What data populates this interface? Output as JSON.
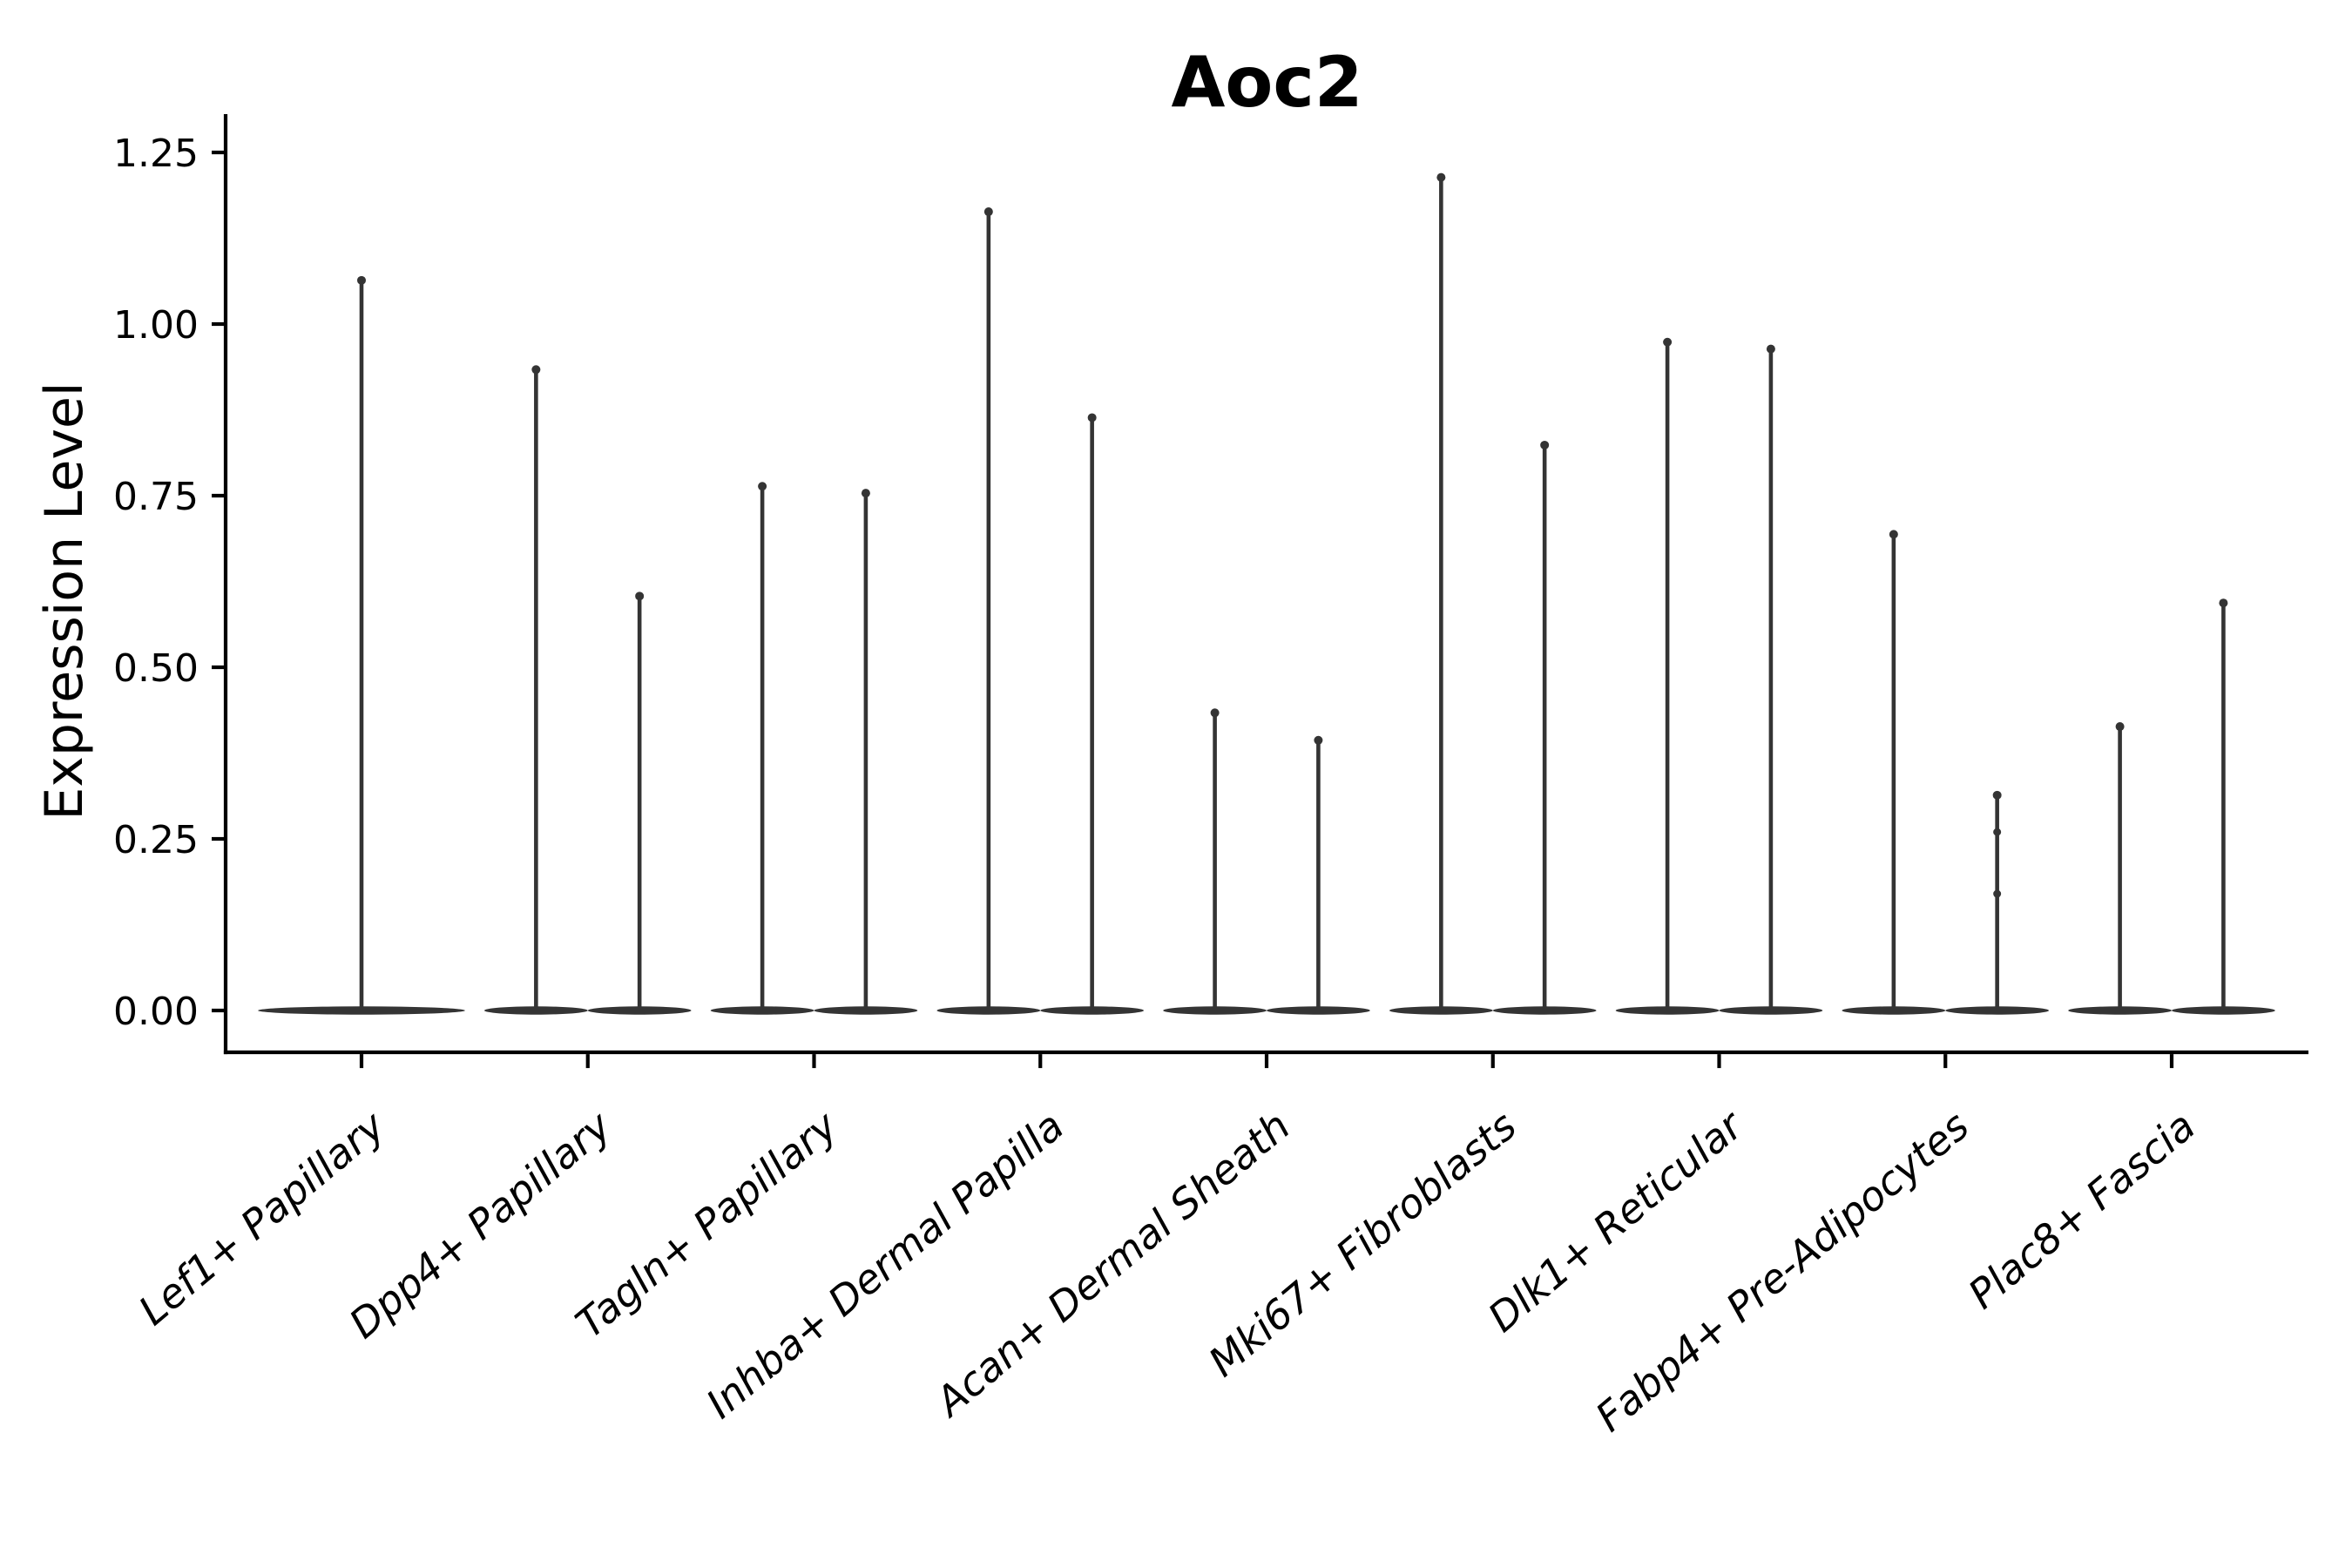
{
  "chart_data": {
    "type": "violin",
    "title": "Aoc2",
    "ylabel": "Expression Level",
    "xlabel": "",
    "grid": false,
    "legend_position": "none",
    "ylim": [
      -0.06,
      1.3
    ],
    "yticks": [
      0.0,
      0.25,
      0.5,
      0.75,
      1.0,
      1.25
    ],
    "ytick_labels": [
      "0.00",
      "0.25",
      "0.50",
      "0.75",
      "1.00",
      "1.25"
    ],
    "x_tick_label_rotation_deg": 40,
    "x_tick_label_style": "italic",
    "violin_color": "#343434",
    "axis_color": "#000000",
    "categories": [
      "Lef1+ Papillary",
      "Dpp4+ Papillary",
      "Tagln+ Papillary",
      "Inhba+ Dermal Papilla",
      "Acan+ Dermal Sheath",
      "Mki67+ Fibroblasts",
      "Dlk1+ Reticular",
      "Fabp4+ Pre-Adipocytes",
      "Plac8+ Fascia"
    ],
    "groups": [
      {
        "category": "Lef1+ Papillary",
        "violins": [
          {
            "max": 1.07,
            "points": []
          }
        ]
      },
      {
        "category": "Dpp4+ Papillary",
        "violins": [
          {
            "max": 0.94,
            "points": []
          },
          {
            "max": 0.61,
            "points": []
          }
        ]
      },
      {
        "category": "Tagln+ Papillary",
        "violins": [
          {
            "max": 0.77,
            "points": []
          },
          {
            "max": 0.76,
            "points": []
          }
        ]
      },
      {
        "category": "Inhba+ Dermal Papilla",
        "violins": [
          {
            "max": 1.17,
            "points": []
          },
          {
            "max": 0.87,
            "points": []
          }
        ]
      },
      {
        "category": "Acan+ Dermal Sheath",
        "violins": [
          {
            "max": 0.44,
            "points": []
          },
          {
            "max": 0.4,
            "points": []
          }
        ]
      },
      {
        "category": "Mki67+ Fibroblasts",
        "violins": [
          {
            "max": 1.22,
            "points": []
          },
          {
            "max": 0.83,
            "points": []
          }
        ]
      },
      {
        "category": "Dlk1+ Reticular",
        "violins": [
          {
            "max": 0.98,
            "points": []
          },
          {
            "max": 0.97,
            "points": []
          }
        ]
      },
      {
        "category": "Fabp4+ Pre-Adipocytes",
        "violins": [
          {
            "max": 0.7,
            "points": []
          },
          {
            "max": 0.32,
            "points": [
              0.26,
              0.17
            ]
          }
        ]
      },
      {
        "category": "Plac8+ Fascia",
        "violins": [
          {
            "max": 0.42,
            "points": []
          },
          {
            "max": 0.6,
            "points": []
          }
        ]
      }
    ]
  }
}
